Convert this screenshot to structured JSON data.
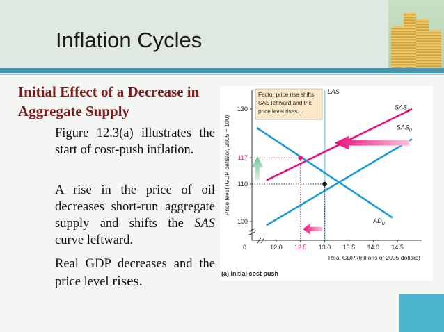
{
  "slide": {
    "title": "Inflation Cycles",
    "heading": "Initial Effect of a Decrease in Aggregate Supply",
    "para1": "Figure 12.3(a) illustrates the start of cost-push inflation.",
    "para2": "A rise in the price of oil decreases short-run aggregate supply and shifts the SAS curve leftward.",
    "para3a": "Real GDP decreases and the price level ",
    "para3b": "rises."
  },
  "colors": {
    "sas1": "#e8107a",
    "sas0": "#1a9ad6",
    "ad0": "#1a9ad6",
    "las": "#8fd0ea",
    "arrow_pink": "#e8107a",
    "arrow_green": "#6cc59a",
    "note_bg": "#fde9c8"
  },
  "chart_data": {
    "type": "line",
    "title": "",
    "caption": "(a) Initial cost push",
    "note": [
      "Factor price rise shifts",
      "SAS leftward and the",
      "price level rises ..."
    ],
    "xlabel": "Real GDP (trillions of 2005 dollars)",
    "ylabel": "Price level (GDP deflator, 2005 = 100)",
    "xlim": [
      11.5,
      15.0
    ],
    "ylim": [
      95,
      135
    ],
    "xticks": [
      {
        "value": 12.0,
        "label": "12.0"
      },
      {
        "value": 12.5,
        "label": "12.5"
      },
      {
        "value": 13.0,
        "label": "13.0"
      },
      {
        "value": 13.5,
        "label": "13.5"
      },
      {
        "value": 14.0,
        "label": "14.0"
      },
      {
        "value": 14.5,
        "label": "14.5"
      }
    ],
    "yticks": [
      {
        "value": 100,
        "label": "100"
      },
      {
        "value": 110,
        "label": "110"
      },
      {
        "value": 117,
        "label": "117"
      },
      {
        "value": 130,
        "label": "130"
      }
    ],
    "origin_label": "0",
    "series": [
      {
        "name": "SAS",
        "sub": "1",
        "points": [
          [
            11.8,
            111
          ],
          [
            14.8,
            130
          ]
        ]
      },
      {
        "name": "SAS",
        "sub": "0",
        "points": [
          [
            11.8,
            99
          ],
          [
            14.8,
            122
          ]
        ]
      },
      {
        "name": "AD",
        "sub": "0",
        "points": [
          [
            11.6,
            125
          ],
          [
            14.4,
            101
          ]
        ]
      },
      {
        "name": "LAS",
        "sub": "",
        "points": [
          [
            13.0,
            95
          ],
          [
            13.0,
            135
          ]
        ]
      }
    ],
    "equilibria": [
      {
        "x": 13.0,
        "y": 110
      },
      {
        "x": 12.5,
        "y": 117
      }
    ]
  }
}
